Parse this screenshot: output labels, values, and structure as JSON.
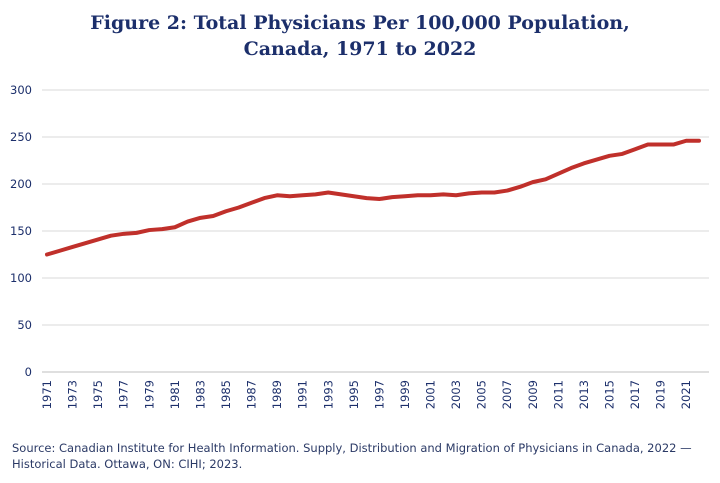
{
  "chart_data": {
    "type": "line",
    "title": "Figure 2: Total Physicians Per 100,000 Population,",
    "title_line2": "Canada, 1971 to 2022",
    "xlabel": "",
    "ylabel": "",
    "ylim": [
      0,
      300
    ],
    "yticks": [
      0,
      50,
      100,
      150,
      200,
      250,
      300
    ],
    "xticks": [
      1971,
      1973,
      1975,
      1977,
      1979,
      1981,
      1983,
      1985,
      1987,
      1989,
      1991,
      1993,
      1995,
      1997,
      1999,
      2001,
      2003,
      2005,
      2007,
      2009,
      2011,
      2013,
      2015,
      2017,
      2019,
      2021
    ],
    "grid": true,
    "legend": "none",
    "line_color": "#c0302b",
    "x": [
      1971,
      1972,
      1973,
      1974,
      1975,
      1976,
      1977,
      1978,
      1979,
      1980,
      1981,
      1982,
      1983,
      1984,
      1985,
      1986,
      1987,
      1988,
      1989,
      1990,
      1991,
      1992,
      1993,
      1994,
      1995,
      1996,
      1997,
      1998,
      1999,
      2000,
      2001,
      2002,
      2003,
      2004,
      2005,
      2006,
      2007,
      2008,
      2009,
      2010,
      2011,
      2012,
      2013,
      2014,
      2015,
      2016,
      2017,
      2018,
      2019,
      2020,
      2021,
      2022
    ],
    "values": [
      125,
      129,
      133,
      137,
      141,
      145,
      147,
      148,
      151,
      152,
      154,
      160,
      164,
      166,
      171,
      175,
      180,
      185,
      188,
      187,
      188,
      189,
      191,
      189,
      187,
      185,
      184,
      186,
      187,
      188,
      188,
      189,
      188,
      190,
      191,
      191,
      193,
      197,
      202,
      205,
      211,
      217,
      222,
      226,
      230,
      232,
      237,
      242,
      242,
      242,
      246,
      246
    ]
  },
  "source": "Source: Canadian Institute for Health Information. Supply, Distribution and Migration of Physicians in Canada, 2022 — Historical Data. Ottawa, ON: CIHI; 2023."
}
